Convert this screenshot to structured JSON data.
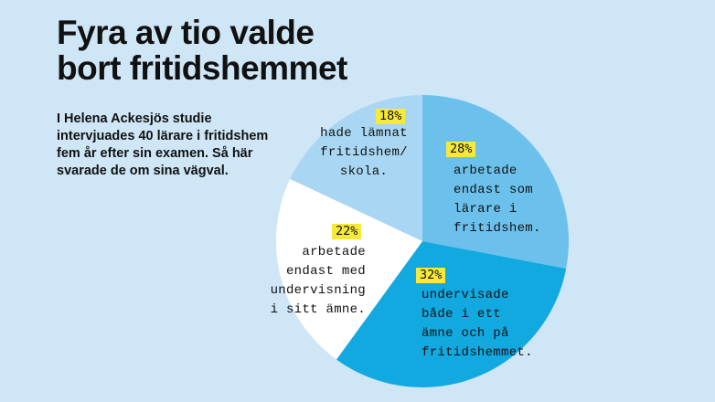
{
  "title_lines": [
    "Fyra av tio valde",
    "bort fritidshemmet"
  ],
  "intro_lines": [
    "I Helena Ackesjös studie",
    "intervjuades 40 lärare i fritidshem",
    "fem år efter sin examen. Så här",
    "svarade de om sina vägval."
  ],
  "colors": {
    "background": "#cfe6f7",
    "highlight": "#f7e93c",
    "slice_lararefritids": "#6cc1ec",
    "slice_bada": "#12a9e1",
    "slice_amne": "#ffffff",
    "slice_lamnat": "#a9d7f3"
  },
  "chart_data": {
    "type": "pie",
    "start": "12 o'clock, clockwise",
    "slices": [
      {
        "value": 28,
        "pct_label": "28%",
        "label": "arbetade\nendast som\nlärare i\nfritidshem."
      },
      {
        "value": 32,
        "pct_label": "32%",
        "label": "undervisade\nbåde i ett\nämne och på\nfritidshemmet."
      },
      {
        "value": 22,
        "pct_label": "22%",
        "label": "arbetade\nendast med\nundervisning\ni sitt ämne."
      },
      {
        "value": 18,
        "pct_label": "18%",
        "label": "hade lämnat\nfritidshem/\nskola."
      }
    ]
  }
}
